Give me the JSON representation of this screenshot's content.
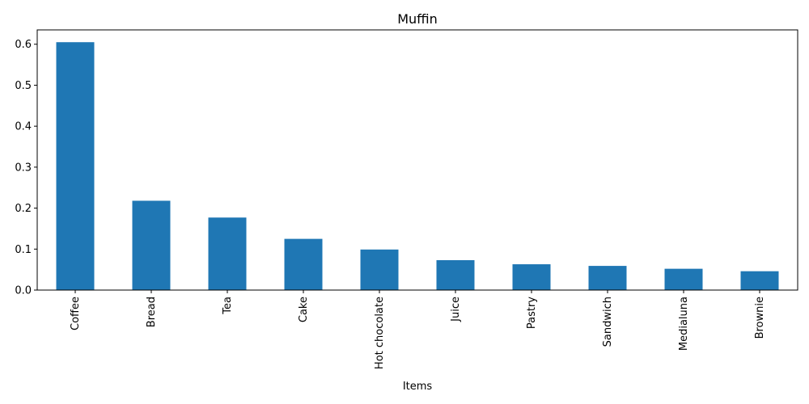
{
  "chart_data": {
    "type": "bar",
    "title": "Muffin",
    "xlabel": "Items",
    "ylabel": "",
    "categories": [
      "Coffee",
      "Bread",
      "Tea",
      "Cake",
      "Hot chocolate",
      "Juice",
      "Pastry",
      "Sandwich",
      "Medialuna",
      "Brownie"
    ],
    "values": [
      0.605,
      0.218,
      0.177,
      0.125,
      0.099,
      0.073,
      0.063,
      0.059,
      0.052,
      0.046
    ],
    "ylim": [
      0,
      0.635
    ],
    "yticks": [
      0.0,
      0.1,
      0.2,
      0.3,
      0.4,
      0.5,
      0.6
    ],
    "ytick_labels": [
      "0.0",
      "0.1",
      "0.2",
      "0.3",
      "0.4",
      "0.5",
      "0.6"
    ],
    "grid": false,
    "legend": "none",
    "bar_color": "#1f77b4"
  }
}
